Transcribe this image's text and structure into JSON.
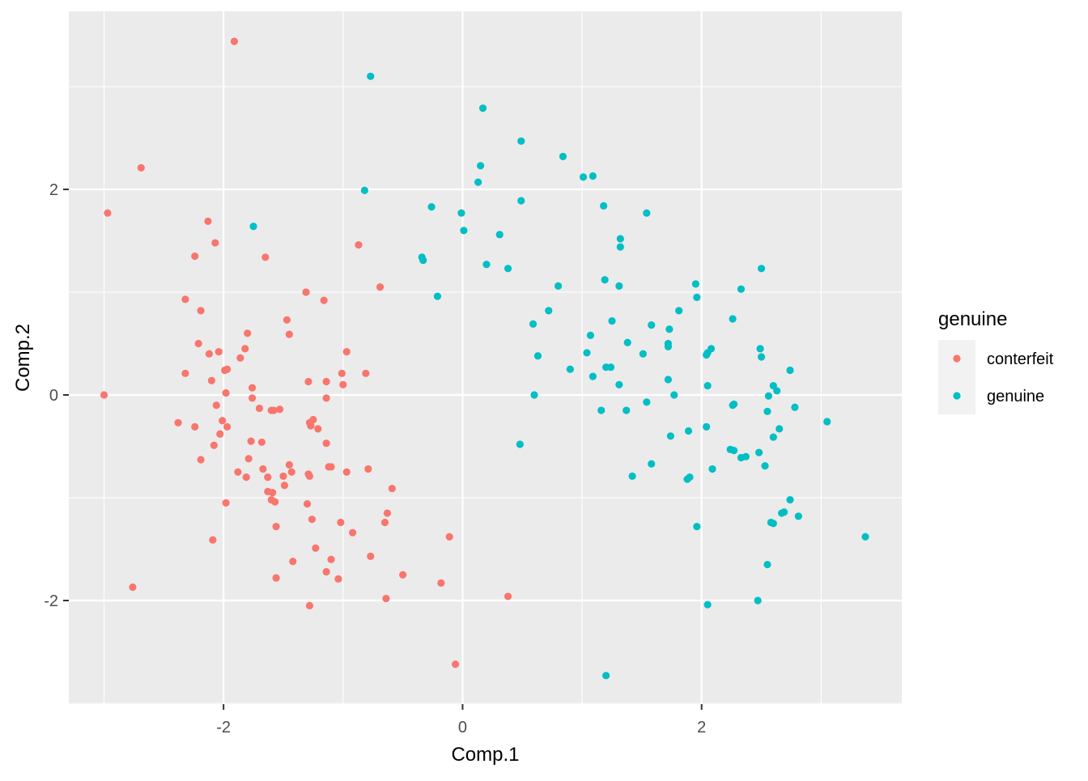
{
  "chart_data": {
    "type": "scatter",
    "xlabel": "Comp.1",
    "ylabel": "Comp.2",
    "xlim": [
      -3.1,
      3.5
    ],
    "ylim": [
      -3.0,
      3.8
    ],
    "x_ticks": [
      -2,
      0,
      2
    ],
    "y_ticks": [
      -2,
      0,
      2
    ],
    "x_tick_labels": [
      "-2",
      "0",
      "2"
    ],
    "y_tick_labels": [
      "-2",
      "0",
      "2"
    ],
    "grid": true,
    "legend": {
      "title": "genuine",
      "position": "right",
      "entries": [
        {
          "label": "conterfeit",
          "color": "#F8766D"
        },
        {
          "label": "genuine",
          "color": "#00BFC4"
        }
      ]
    },
    "colors": {
      "panel_background": "#EBEBEB",
      "grid": "#FFFFFF",
      "legend_key_background": "#F2F2F2"
    },
    "series": [
      {
        "name": "conterfeit",
        "color": "#F8766D",
        "points": [
          [
            -1.91,
            3.44
          ],
          [
            -2.69,
            2.21
          ],
          [
            -2.97,
            1.77
          ],
          [
            -3.0,
            0.0
          ],
          [
            -2.76,
            -1.87
          ],
          [
            -2.13,
            1.69
          ],
          [
            -2.07,
            1.48
          ],
          [
            -2.24,
            1.35
          ],
          [
            -1.65,
            1.34
          ],
          [
            -0.87,
            1.46
          ],
          [
            -0.69,
            1.05
          ],
          [
            -1.31,
            1.0
          ],
          [
            -2.32,
            0.93
          ],
          [
            -2.19,
            0.82
          ],
          [
            -1.16,
            0.92
          ],
          [
            -1.47,
            0.73
          ],
          [
            -1.8,
            0.6
          ],
          [
            -1.45,
            0.59
          ],
          [
            -2.21,
            0.5
          ],
          [
            -2.04,
            0.42
          ],
          [
            -2.12,
            0.4
          ],
          [
            -1.82,
            0.45
          ],
          [
            -1.86,
            0.36
          ],
          [
            -0.97,
            0.42
          ],
          [
            -1.97,
            0.25
          ],
          [
            -1.99,
            0.24
          ],
          [
            -2.32,
            0.21
          ],
          [
            -1.01,
            0.21
          ],
          [
            -0.81,
            0.21
          ],
          [
            -2.1,
            0.14
          ],
          [
            -1.29,
            0.13
          ],
          [
            -1.14,
            0.13
          ],
          [
            -1.0,
            0.1
          ],
          [
            -1.76,
            0.07
          ],
          [
            -1.98,
            0.02
          ],
          [
            -1.76,
            -0.03
          ],
          [
            -1.14,
            -0.03
          ],
          [
            -2.06,
            -0.1
          ],
          [
            -1.7,
            -0.13
          ],
          [
            -1.53,
            -0.14
          ],
          [
            -1.6,
            -0.15
          ],
          [
            -1.58,
            -0.15
          ],
          [
            -2.38,
            -0.27
          ],
          [
            -1.28,
            -0.27
          ],
          [
            -1.25,
            -0.24
          ],
          [
            -2.01,
            -0.25
          ],
          [
            -2.24,
            -0.31
          ],
          [
            -1.97,
            -0.31
          ],
          [
            -1.27,
            -0.3
          ],
          [
            -1.21,
            -0.33
          ],
          [
            -2.03,
            -0.38
          ],
          [
            -1.77,
            -0.45
          ],
          [
            -1.68,
            -0.46
          ],
          [
            -1.14,
            -0.47
          ],
          [
            -2.08,
            -0.49
          ],
          [
            -2.19,
            -0.63
          ],
          [
            -1.79,
            -0.62
          ],
          [
            -1.12,
            -0.7
          ],
          [
            -1.1,
            -0.7
          ],
          [
            -1.67,
            -0.72
          ],
          [
            -1.45,
            -0.68
          ],
          [
            -1.43,
            -0.75
          ],
          [
            -1.88,
            -0.75
          ],
          [
            -0.97,
            -0.75
          ],
          [
            -0.79,
            -0.72
          ],
          [
            -1.29,
            -0.77
          ],
          [
            -1.28,
            -0.79
          ],
          [
            -1.63,
            -0.8
          ],
          [
            -1.81,
            -0.8
          ],
          [
            -1.5,
            -0.79
          ],
          [
            -1.49,
            -0.88
          ],
          [
            -0.59,
            -0.91
          ],
          [
            -1.63,
            -0.94
          ],
          [
            -1.59,
            -0.95
          ],
          [
            -1.6,
            -1.02
          ],
          [
            -1.57,
            -1.04
          ],
          [
            -1.98,
            -1.05
          ],
          [
            -1.3,
            -1.06
          ],
          [
            -0.63,
            -1.15
          ],
          [
            -1.26,
            -1.21
          ],
          [
            -1.02,
            -1.24
          ],
          [
            -0.65,
            -1.24
          ],
          [
            -1.56,
            -1.28
          ],
          [
            -0.92,
            -1.34
          ],
          [
            -2.09,
            -1.41
          ],
          [
            -0.11,
            -1.38
          ],
          [
            -1.23,
            -1.49
          ],
          [
            -0.77,
            -1.57
          ],
          [
            -1.1,
            -1.6
          ],
          [
            -1.42,
            -1.62
          ],
          [
            -1.14,
            -1.72
          ],
          [
            -1.04,
            -1.79
          ],
          [
            -1.56,
            -1.78
          ],
          [
            -0.5,
            -1.75
          ],
          [
            -0.18,
            -1.83
          ],
          [
            -0.64,
            -1.98
          ],
          [
            -1.28,
            -2.05
          ],
          [
            0.38,
            -1.96
          ],
          [
            -0.06,
            -2.62
          ]
        ]
      },
      {
        "name": "genuine",
        "color": "#00BFC4",
        "points": [
          [
            -0.77,
            3.1
          ],
          [
            0.17,
            2.79
          ],
          [
            0.49,
            2.47
          ],
          [
            0.84,
            2.32
          ],
          [
            0.15,
            2.23
          ],
          [
            1.01,
            2.12
          ],
          [
            1.09,
            2.13
          ],
          [
            0.13,
            2.07
          ],
          [
            -0.82,
            1.99
          ],
          [
            0.49,
            1.89
          ],
          [
            -0.26,
            1.83
          ],
          [
            1.18,
            1.84
          ],
          [
            -0.01,
            1.77
          ],
          [
            1.54,
            1.77
          ],
          [
            -1.75,
            1.64
          ],
          [
            0.01,
            1.6
          ],
          [
            0.31,
            1.56
          ],
          [
            1.32,
            1.52
          ],
          [
            1.32,
            1.44
          ],
          [
            -0.34,
            1.34
          ],
          [
            -0.33,
            1.31
          ],
          [
            0.2,
            1.27
          ],
          [
            0.38,
            1.23
          ],
          [
            2.5,
            1.23
          ],
          [
            1.19,
            1.12
          ],
          [
            0.8,
            1.06
          ],
          [
            1.31,
            1.06
          ],
          [
            1.95,
            1.08
          ],
          [
            2.33,
            1.03
          ],
          [
            -0.21,
            0.96
          ],
          [
            1.96,
            0.95
          ],
          [
            0.72,
            0.82
          ],
          [
            1.81,
            0.82
          ],
          [
            2.26,
            0.74
          ],
          [
            1.25,
            0.72
          ],
          [
            0.59,
            0.69
          ],
          [
            1.58,
            0.68
          ],
          [
            1.73,
            0.64
          ],
          [
            1.07,
            0.58
          ],
          [
            1.38,
            0.51
          ],
          [
            1.72,
            0.5
          ],
          [
            1.72,
            0.47
          ],
          [
            2.08,
            0.45
          ],
          [
            2.49,
            0.45
          ],
          [
            2.05,
            0.41
          ],
          [
            1.51,
            0.4
          ],
          [
            0.63,
            0.38
          ],
          [
            1.04,
            0.41
          ],
          [
            2.04,
            0.39
          ],
          [
            2.5,
            0.37
          ],
          [
            1.2,
            0.27
          ],
          [
            1.24,
            0.27
          ],
          [
            0.9,
            0.25
          ],
          [
            2.74,
            0.24
          ],
          [
            1.09,
            0.18
          ],
          [
            1.72,
            0.15
          ],
          [
            1.31,
            0.1
          ],
          [
            2.05,
            0.09
          ],
          [
            2.6,
            0.09
          ],
          [
            2.63,
            0.04
          ],
          [
            0.6,
            0.0
          ],
          [
            1.77,
            0.0
          ],
          [
            2.56,
            -0.01
          ],
          [
            1.54,
            -0.07
          ],
          [
            2.27,
            -0.09
          ],
          [
            2.26,
            -0.1
          ],
          [
            2.78,
            -0.12
          ],
          [
            1.16,
            -0.15
          ],
          [
            1.37,
            -0.15
          ],
          [
            2.55,
            -0.16
          ],
          [
            3.05,
            -0.26
          ],
          [
            2.04,
            -0.31
          ],
          [
            2.65,
            -0.33
          ],
          [
            1.89,
            -0.35
          ],
          [
            1.74,
            -0.4
          ],
          [
            2.6,
            -0.41
          ],
          [
            0.48,
            -0.48
          ],
          [
            2.24,
            -0.53
          ],
          [
            2.27,
            -0.54
          ],
          [
            2.48,
            -0.56
          ],
          [
            2.37,
            -0.6
          ],
          [
            2.33,
            -0.61
          ],
          [
            1.58,
            -0.67
          ],
          [
            2.53,
            -0.69
          ],
          [
            2.09,
            -0.72
          ],
          [
            1.42,
            -0.79
          ],
          [
            1.9,
            -0.8
          ],
          [
            1.88,
            -0.82
          ],
          [
            2.74,
            -1.02
          ],
          [
            2.69,
            -1.14
          ],
          [
            2.67,
            -1.15
          ],
          [
            2.81,
            -1.18
          ],
          [
            2.58,
            -1.24
          ],
          [
            2.6,
            -1.25
          ],
          [
            1.96,
            -1.28
          ],
          [
            3.37,
            -1.38
          ],
          [
            2.55,
            -1.65
          ],
          [
            2.47,
            -2.0
          ],
          [
            2.05,
            -2.04
          ],
          [
            1.2,
            -2.73
          ]
        ]
      }
    ]
  }
}
